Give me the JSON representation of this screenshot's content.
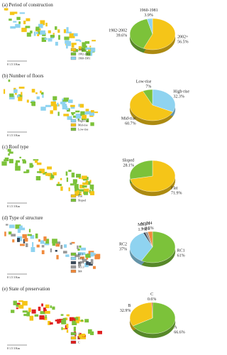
{
  "map_scale_label": "0    1.5    3 Km",
  "chart_data": [
    {
      "type": "pie",
      "title": "(a) Period of construction",
      "categories": [
        "2002+",
        "1982-2002",
        "1960-1981"
      ],
      "values": [
        56.5,
        39.6,
        3.9
      ],
      "value_labels": [
        "56.5%",
        "39.6%",
        "3.9%"
      ],
      "colors": [
        "#f5c518",
        "#7cc23a",
        "#8fd3f0"
      ]
    },
    {
      "type": "pie",
      "title": "(b) Number of floors",
      "categories": [
        "High-rise",
        "Mid-rise",
        "Low-rise"
      ],
      "values": [
        32.3,
        60.7,
        7
      ],
      "value_labels": [
        "32.3%",
        "60.7%",
        "7%"
      ],
      "colors": [
        "#8fd3f0",
        "#f5c518",
        "#7cc23a"
      ]
    },
    {
      "type": "pie",
      "title": "(c) Roof type",
      "categories": [
        "Flat",
        "Sloped"
      ],
      "values": [
        71.9,
        28.1
      ],
      "value_labels": [
        "71.9%",
        "28.1%"
      ],
      "colors": [
        "#f5c518",
        "#7cc23a"
      ]
    },
    {
      "type": "pie",
      "title": "(d) Type of structure",
      "categories": [
        "RC1",
        "RC2",
        "M3.1",
        "M3.3",
        "M4"
      ],
      "values": [
        61,
        37,
        1.7,
        1.9,
        3.5
      ],
      "value_labels": [
        "61%",
        "37%",
        "1.7%",
        "1.9%",
        "3.5%"
      ],
      "colors": [
        "#7cc23a",
        "#8fd3f0",
        "#3a4a5a",
        "#9a9a9a",
        "#f08a3c"
      ]
    },
    {
      "type": "pie",
      "title": "(e) State of preservation",
      "categories": [
        "A",
        "B",
        "C"
      ],
      "values": [
        66.6,
        32.9,
        0.6
      ],
      "value_labels": [
        "66.6%",
        "32.9%",
        "0.6%"
      ],
      "colors": [
        "#7cc23a",
        "#f5c518",
        "#e02020"
      ]
    }
  ]
}
